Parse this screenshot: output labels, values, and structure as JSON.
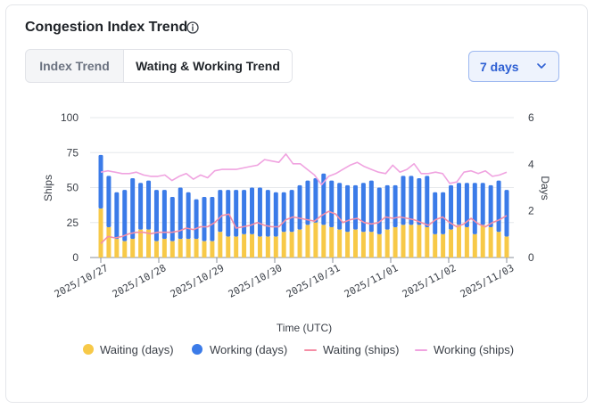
{
  "header": {
    "title": "Congestion Index Trend",
    "info_icon": "info-circle-icon"
  },
  "tabs": [
    {
      "label": "Index Trend",
      "active": false
    },
    {
      "label": "Wating & Working Trend",
      "active": true
    }
  ],
  "range_select": {
    "value": "7 days",
    "icon": "chevron-down-icon"
  },
  "colors": {
    "waiting_days": "#f7c948",
    "working_days": "#3b7be8",
    "waiting_ships": "#f58ea6",
    "working_ships": "#f0a3e0"
  },
  "chart_data": {
    "type": "bar",
    "stacked": true,
    "xlabel": "Time (UTC)",
    "ylabel": "Ships",
    "y2label": "Days",
    "ylim": [
      0,
      100
    ],
    "y2lim": [
      0,
      6
    ],
    "yticks": [
      "0",
      "25",
      "50",
      "75",
      "100"
    ],
    "y2ticks": [
      "0",
      "2",
      "4",
      "6"
    ],
    "grid": true,
    "legend_position": "bottom",
    "x_tick_labels": [
      "2025/10/27",
      "2025/10/28",
      "2025/10/29",
      "2025/10/30",
      "2025/10/31",
      "2025/11/01",
      "2025/11/02",
      "2025/11/03"
    ],
    "series": [
      {
        "name": "Waiting (days)",
        "kind": "bar",
        "axis": "right",
        "values": [
          2.1,
          1.3,
          0.8,
          0.7,
          0.8,
          1.2,
          1.2,
          0.7,
          0.8,
          0.7,
          0.8,
          0.8,
          0.8,
          0.7,
          0.7,
          1.1,
          0.9,
          0.9,
          1.0,
          1.0,
          0.9,
          0.9,
          0.9,
          1.1,
          1.1,
          1.2,
          1.4,
          1.5,
          1.4,
          1.3,
          1.2,
          1.1,
          1.2,
          1.1,
          1.1,
          1.0,
          1.2,
          1.3,
          1.4,
          1.4,
          1.4,
          1.3,
          1.0,
          1.0,
          1.2,
          1.4,
          1.3,
          1.0,
          1.4,
          1.3,
          1.1,
          0.9
        ]
      },
      {
        "name": "Working (days)",
        "kind": "bar",
        "axis": "right",
        "values": [
          2.3,
          2.2,
          2.0,
          2.2,
          2.6,
          2.0,
          2.1,
          2.2,
          2.1,
          1.9,
          2.2,
          2.0,
          1.7,
          1.9,
          1.9,
          1.8,
          2.0,
          2.0,
          1.9,
          2.0,
          2.1,
          2.0,
          1.9,
          1.7,
          1.8,
          1.9,
          1.9,
          1.9,
          2.2,
          2.0,
          2.0,
          2.0,
          1.9,
          2.1,
          2.2,
          2.0,
          1.9,
          1.8,
          2.1,
          2.1,
          2.0,
          2.2,
          1.8,
          1.8,
          1.9,
          1.8,
          1.9,
          2.2,
          1.8,
          1.8,
          2.2,
          2.0
        ]
      },
      {
        "name": "Waiting (ships)",
        "kind": "line",
        "axis": "left",
        "values": [
          10,
          15,
          14,
          15,
          17,
          18,
          18,
          17,
          18,
          18,
          18,
          19,
          21,
          20,
          22,
          22,
          25,
          30,
          31,
          21,
          22,
          23,
          25,
          23,
          22,
          22,
          27,
          29,
          28,
          27,
          26,
          30,
          33,
          31,
          25,
          27,
          28,
          25,
          24,
          25,
          29,
          28,
          29,
          28,
          27,
          25,
          23,
          27,
          29,
          25,
          22,
          24,
          28,
          24,
          22,
          25,
          27,
          30
        ]
      },
      {
        "name": "Working (ships)",
        "kind": "line",
        "axis": "left",
        "values": [
          61,
          62,
          61,
          60,
          60,
          61,
          59,
          58,
          58,
          59,
          55,
          58,
          60,
          56,
          59,
          57,
          62,
          63,
          63,
          63,
          64,
          65,
          66,
          70,
          69,
          68,
          74,
          67,
          67,
          63,
          59,
          52,
          58,
          60,
          63,
          66,
          68,
          65,
          63,
          61,
          60,
          66,
          61,
          63,
          67,
          60,
          60,
          61,
          60,
          53,
          54,
          61,
          62,
          60,
          62,
          58,
          59,
          61
        ]
      }
    ]
  }
}
